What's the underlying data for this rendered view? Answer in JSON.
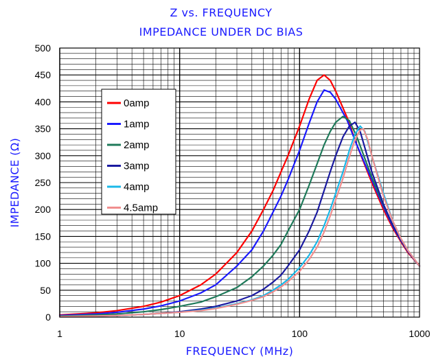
{
  "chart_data": {
    "type": "line",
    "title": "Z vs. FREQUENCY",
    "subtitle": "IMPEDANCE UNDER DC BIAS",
    "xlabel": "FREQUENCY (MHz)",
    "ylabel": "IMPEDANCE (Ω)",
    "xscale": "log",
    "xlim": [
      1,
      1000
    ],
    "ylim": [
      0,
      500
    ],
    "x_ticks": [
      1,
      10,
      100,
      1000
    ],
    "x_tick_labels": [
      "1",
      "10",
      "100",
      "1000"
    ],
    "y_ticks": [
      0,
      50,
      100,
      150,
      200,
      250,
      300,
      350,
      400,
      450,
      500
    ],
    "y_tick_labels": [
      "0",
      "50",
      "100",
      "150",
      "200",
      "250",
      "300",
      "350",
      "400",
      "450",
      "500"
    ],
    "grid": true,
    "legend_position": "left",
    "series": [
      {
        "name": "0amp",
        "color": "#ff0000",
        "x": [
          1,
          2,
          3,
          5,
          7,
          10,
          15,
          20,
          30,
          40,
          50,
          60,
          70,
          80,
          100,
          120,
          140,
          160,
          180,
          200,
          250,
          300,
          400,
          500,
          600,
          700,
          800,
          1000
        ],
        "y": [
          4,
          8,
          12,
          20,
          28,
          40,
          60,
          80,
          120,
          160,
          200,
          235,
          270,
          300,
          355,
          405,
          440,
          450,
          440,
          420,
          370,
          320,
          250,
          200,
          165,
          140,
          120,
          95
        ]
      },
      {
        "name": "1amp",
        "color": "#1a1aff",
        "x": [
          1,
          2,
          3,
          5,
          7,
          10,
          15,
          20,
          30,
          40,
          50,
          60,
          70,
          80,
          100,
          120,
          140,
          160,
          180,
          200,
          250,
          300,
          400,
          500,
          600,
          700,
          800,
          1000
        ],
        "y": [
          3,
          6,
          9,
          15,
          21,
          30,
          45,
          60,
          95,
          125,
          160,
          195,
          225,
          255,
          310,
          360,
          400,
          422,
          418,
          405,
          365,
          320,
          255,
          205,
          168,
          142,
          122,
          95
        ]
      },
      {
        "name": "2amp",
        "color": "#1f7a5a",
        "x": [
          1,
          2,
          3,
          5,
          7,
          10,
          15,
          20,
          30,
          40,
          50,
          60,
          70,
          80,
          100,
          120,
          140,
          160,
          180,
          200,
          230,
          260,
          300,
          400,
          500,
          600,
          700,
          800,
          1000
        ],
        "y": [
          2,
          4,
          6,
          10,
          14,
          20,
          28,
          38,
          55,
          75,
          95,
          115,
          135,
          160,
          200,
          245,
          285,
          320,
          345,
          362,
          373,
          365,
          335,
          260,
          208,
          170,
          143,
          123,
          95
        ]
      },
      {
        "name": "3amp",
        "color": "#1a1aa0",
        "x": [
          1,
          2,
          3,
          5,
          7,
          10,
          15,
          20,
          30,
          40,
          50,
          60,
          70,
          80,
          100,
          120,
          140,
          160,
          180,
          200,
          230,
          260,
          290,
          320,
          400,
          500,
          600,
          700,
          800,
          1000
        ],
        "y": [
          1,
          2,
          3,
          5,
          7,
          10,
          15,
          20,
          30,
          40,
          52,
          65,
          78,
          95,
          125,
          160,
          195,
          235,
          270,
          300,
          335,
          355,
          362,
          345,
          270,
          210,
          170,
          143,
          122,
          95
        ]
      },
      {
        "name": "4amp",
        "color": "#1ab8e8",
        "x": [
          1,
          2,
          3,
          5,
          7,
          10,
          15,
          20,
          30,
          40,
          50,
          60,
          70,
          80,
          100,
          120,
          140,
          160,
          180,
          200,
          230,
          260,
          290,
          320,
          350,
          400,
          500,
          600,
          700,
          800,
          1000
        ],
        "y": [
          1,
          2,
          3,
          5,
          7,
          9,
          13,
          17,
          25,
          32,
          40,
          50,
          60,
          70,
          92,
          115,
          140,
          170,
          200,
          230,
          270,
          310,
          340,
          355,
          345,
          300,
          230,
          178,
          146,
          124,
          95
        ]
      },
      {
        "name": "4.5amp",
        "color": "#f08e8e",
        "x": [
          1,
          2,
          3,
          5,
          7,
          10,
          15,
          20,
          30,
          40,
          50,
          60,
          70,
          80,
          100,
          120,
          140,
          160,
          180,
          200,
          230,
          260,
          290,
          320,
          340,
          370,
          400,
          500,
          600,
          700,
          800,
          1000
        ],
        "y": [
          1,
          2,
          3,
          5,
          7,
          9,
          12,
          16,
          24,
          31,
          38,
          47,
          56,
          66,
          85,
          107,
          130,
          158,
          188,
          218,
          258,
          298,
          330,
          348,
          350,
          330,
          300,
          225,
          178,
          146,
          124,
          95
        ]
      }
    ]
  }
}
